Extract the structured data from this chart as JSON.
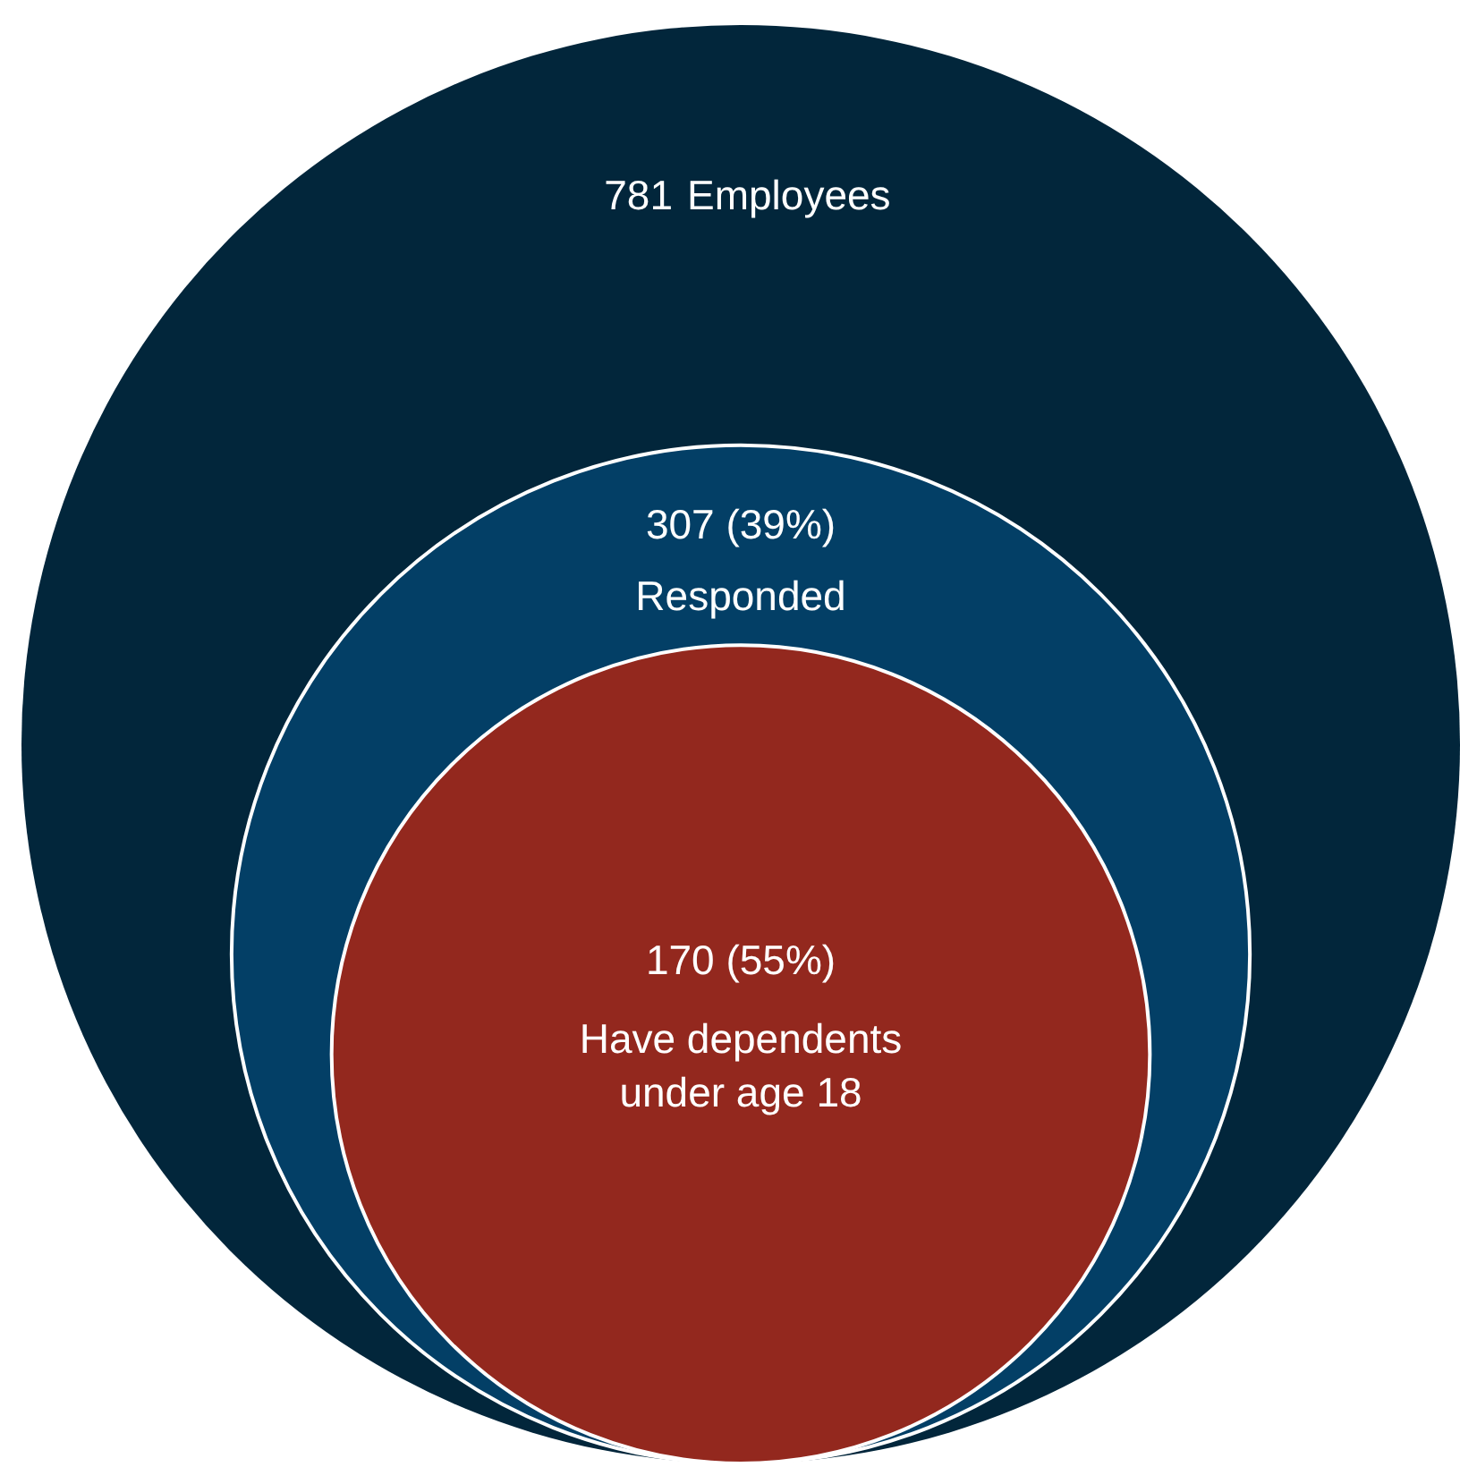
{
  "chart_data": {
    "type": "other",
    "categories": [
      "Employees",
      "Responded",
      "Have dependents\nunder age 18"
    ],
    "values": [
      781,
      307,
      170
    ],
    "value_labels": [
      "781",
      "307 (39%)",
      "170 (55%)"
    ],
    "colors": [
      "#02263b",
      "#033f66",
      "#93281e"
    ]
  }
}
